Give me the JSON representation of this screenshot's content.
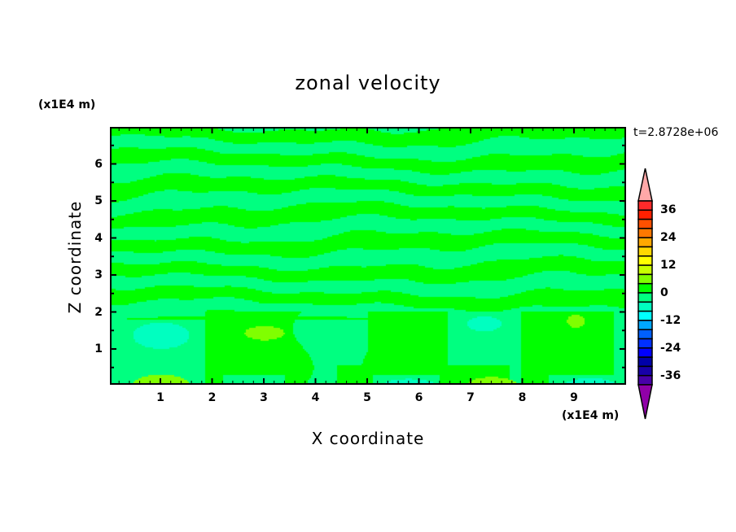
{
  "chart_data": {
    "type": "heatmap",
    "subtype": "filled-contour",
    "title": "zonal velocity",
    "xlabel": "X coordinate",
    "ylabel": "Z coordinate",
    "x_unit_label": "(x1E4 m)",
    "z_unit_label": "(x1E4 m)",
    "time_label": "t=2.8728e+06",
    "xlim": [
      0,
      10
    ],
    "ylim": [
      0,
      7
    ],
    "x_ticks": [
      "1",
      "2",
      "3",
      "4",
      "5",
      "6",
      "7",
      "8",
      "9"
    ],
    "z_ticks": [
      "1",
      "2",
      "3",
      "4",
      "5",
      "6"
    ],
    "colorbar": {
      "levels_min": -40,
      "levels_max": 40,
      "level_step": 4,
      "tick_labels": [
        "36",
        "24",
        "12",
        "0",
        "-12",
        "-24",
        "-36"
      ],
      "colors_top_to_bottom": [
        "#ff2a2a",
        "#ff2000",
        "#ff5000",
        "#ff7800",
        "#ffa800",
        "#ffd800",
        "#ffff00",
        "#c8ff00",
        "#80ff00",
        "#00ff00",
        "#00ff80",
        "#00ffc0",
        "#00ffff",
        "#00a8ff",
        "#0060ff",
        "#0030ff",
        "#0000ff",
        "#0000a8",
        "#1800a8",
        "#4800a8"
      ],
      "over_color": "#ffa8a8",
      "under_color": "#9000a8",
      "extend": "both"
    }
  }
}
